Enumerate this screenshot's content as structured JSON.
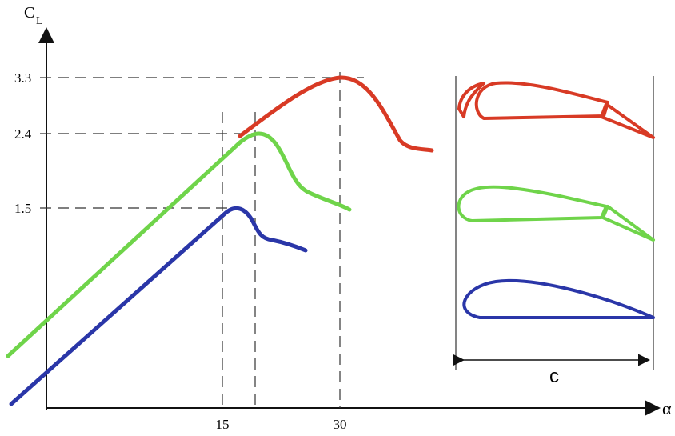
{
  "axes": {
    "y_label": "C",
    "y_label_subscript": "L",
    "x_label": "α",
    "y_ticks": [
      "3.3",
      "2.4",
      "1.5"
    ],
    "x_ticks": [
      "15",
      "30"
    ]
  },
  "chord_label": "c"
}
